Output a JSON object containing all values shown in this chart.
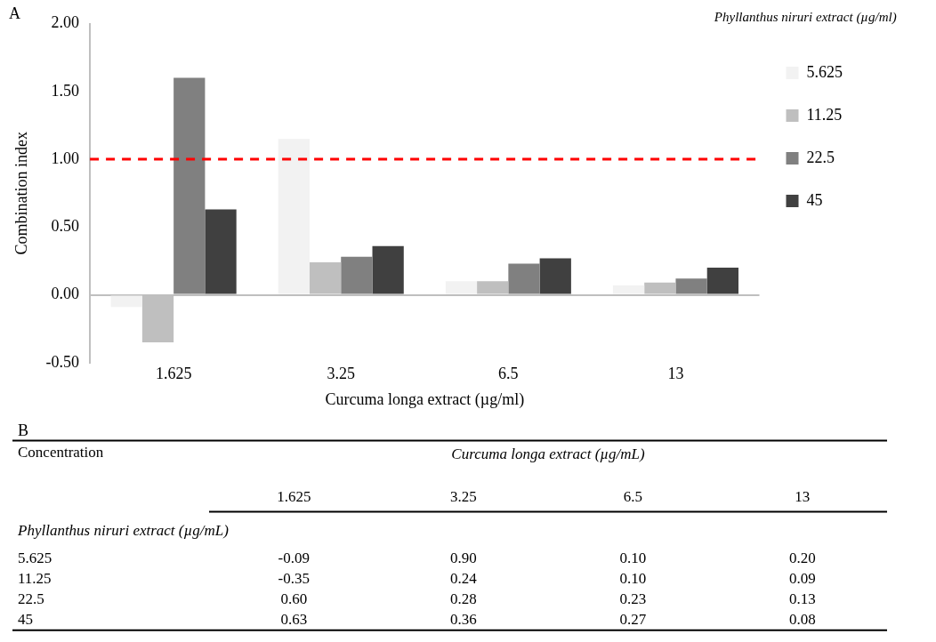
{
  "chart_data": [
    {
      "type": "bar",
      "title": "A",
      "xlabel": "Curcuma longa extract (µg/ml)",
      "ylabel": "Combination index",
      "legend_title": "Phyllanthus niruri extract (µg/ml)",
      "legend": "right",
      "categories": [
        "1.625",
        "3.25",
        "6.5",
        "13"
      ],
      "series": [
        {
          "name": "5.625",
          "color": "#f2f2f2",
          "values": [
            -0.09,
            1.15,
            0.1,
            0.07
          ]
        },
        {
          "name": "11.25",
          "color": "#bfbfbf",
          "values": [
            -0.35,
            0.24,
            0.1,
            0.09
          ]
        },
        {
          "name": "22.5",
          "color": "#808080",
          "values": [
            1.6,
            0.28,
            0.23,
            0.12
          ]
        },
        {
          "name": "45",
          "color": "#404040",
          "values": [
            0.63,
            0.36,
            0.27,
            0.2
          ]
        }
      ],
      "ylim": [
        -0.5,
        2
      ],
      "yticks": [
        {
          "value": -0.5,
          "label": "-0.50"
        },
        {
          "value": 0,
          "label": "0.00"
        },
        {
          "value": 0.5,
          "label": "0.50"
        },
        {
          "value": 1,
          "label": "1.00"
        },
        {
          "value": 1.5,
          "label": "1.50"
        },
        {
          "value": 2,
          "label": "2.00"
        }
      ],
      "grid": false,
      "ref_lines": [
        {
          "axis": "y",
          "value": 1,
          "color": "#ff0000",
          "line_style": "dashed"
        }
      ]
    },
    {
      "type": "heatmap",
      "title": "B",
      "xlabel": "Curcuma longa extract (µg/mL)",
      "ylabel": "Phyllanthus niruri extract (µg/mL)",
      "annotations": [
        "Concentration"
      ],
      "categories": [
        "1.625",
        "3.25",
        "6.5",
        "13"
      ],
      "y_categories": [
        "5.625",
        "11.25",
        "22.5",
        "45"
      ],
      "cells": [
        [
          -0.09,
          0.9,
          0.1,
          0.2
        ],
        [
          -0.35,
          0.24,
          0.1,
          0.09
        ],
        [
          0.6,
          0.28,
          0.23,
          0.13
        ],
        [
          0.63,
          0.36,
          0.27,
          0.08
        ]
      ],
      "cell_labels": [
        [
          "-0.09",
          "0.90",
          "0.10",
          "0.20"
        ],
        [
          "-0.35",
          "0.24",
          "0.10",
          "0.09"
        ],
        [
          "0.60",
          "0.28",
          "0.23",
          "0.13"
        ],
        [
          "0.63",
          "0.36",
          "0.27",
          "0.08"
        ]
      ]
    }
  ]
}
